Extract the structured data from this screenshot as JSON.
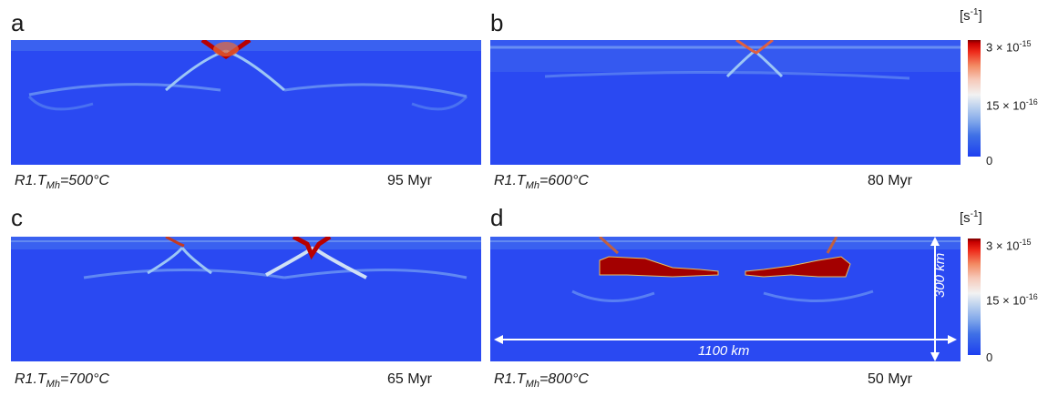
{
  "panels": [
    {
      "letter": "a",
      "caption_main": "R1.T",
      "caption_sub": "Mh",
      "caption_rest": "=500°C",
      "time": "95 Myr"
    },
    {
      "letter": "b",
      "caption_main": "R1.T",
      "caption_sub": "Mh",
      "caption_rest": "=600°C",
      "time": "80 Myr"
    },
    {
      "letter": "c",
      "caption_main": "R1.T",
      "caption_sub": "Mh",
      "caption_rest": "=700°C",
      "time": "65 Myr"
    },
    {
      "letter": "d",
      "caption_main": "R1.T",
      "caption_sub": "Mh",
      "caption_rest": "=800°C",
      "time": "50 Myr"
    }
  ],
  "colorbar": {
    "unit_open": "[s",
    "unit_exp": "-1",
    "unit_close": "]",
    "max_base": "3 × 10",
    "max_exp": "-15",
    "mid_base": "15 × 10",
    "mid_exp": "-16",
    "min": "0"
  },
  "dimensions": {
    "width_label": "1100 km",
    "depth_label": "300 km"
  },
  "colors": {
    "background": "#2a49f2",
    "hot": "#a30000",
    "highlight": "#7fb2f5"
  }
}
